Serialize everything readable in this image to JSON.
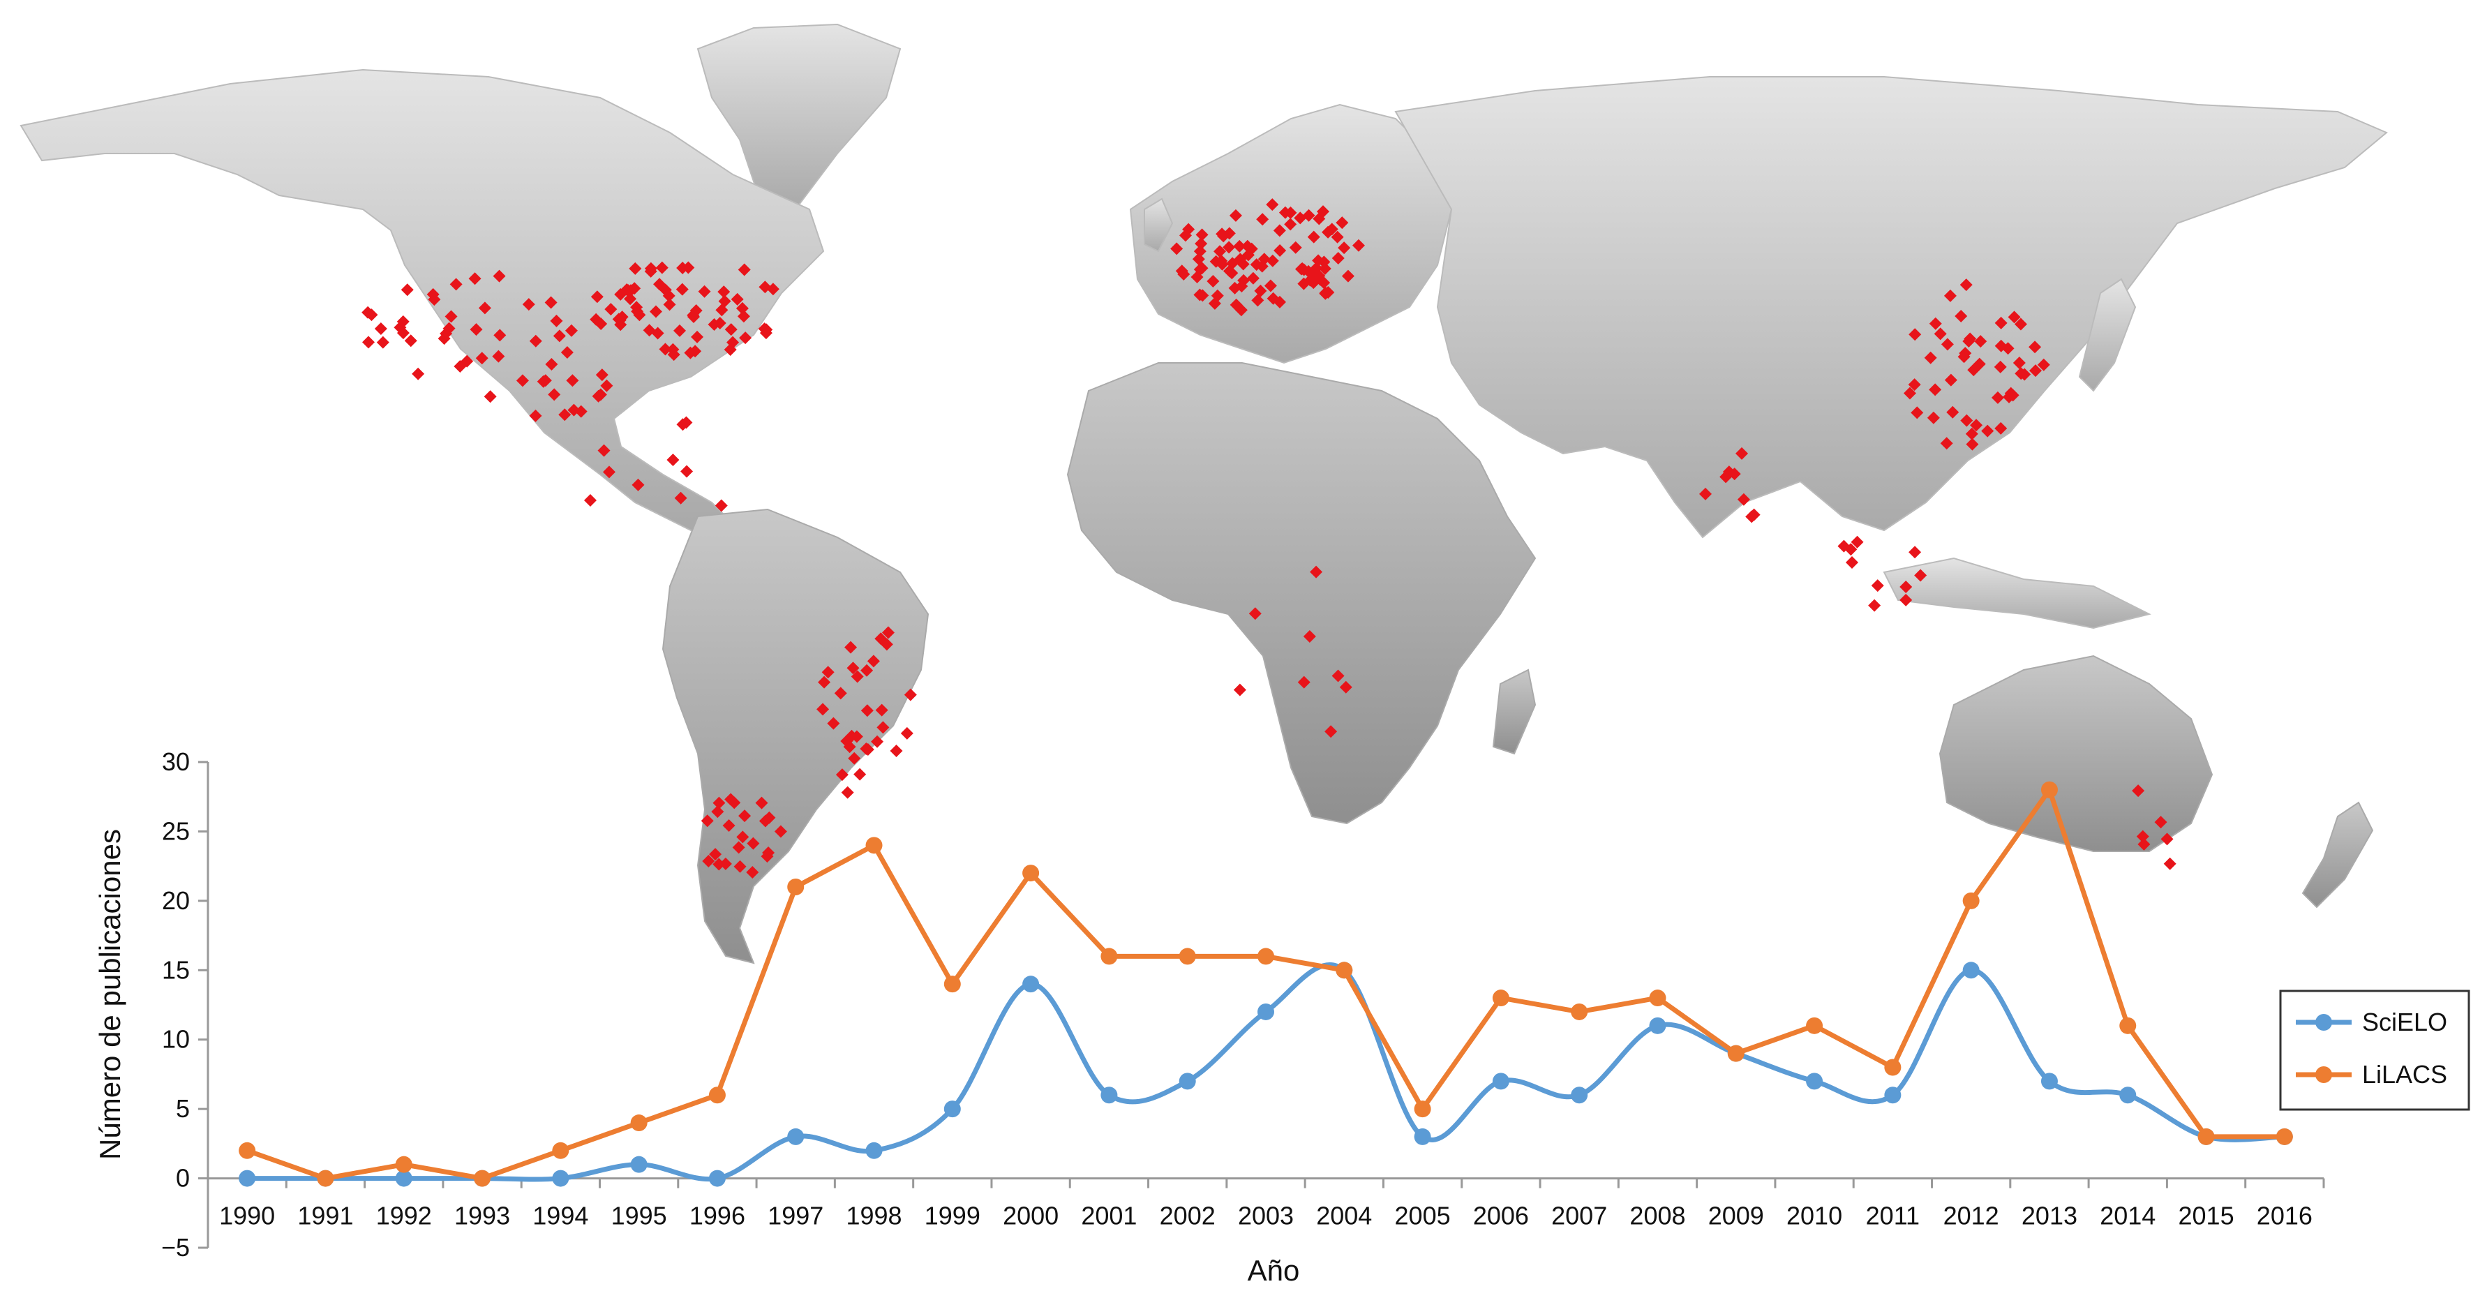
{
  "chart_data": {
    "type": "line",
    "background": "world map with red markers",
    "title": "",
    "xlabel": "Año",
    "ylabel": "Número de publicaciones",
    "ylim": [
      -5,
      30
    ],
    "yticks": [
      "30",
      "25",
      "20",
      "15",
      "10",
      "5",
      "0",
      "−5"
    ],
    "ytick_values": [
      30,
      25,
      20,
      15,
      10,
      5,
      0,
      -5
    ],
    "categories": [
      "1990",
      "1991",
      "1992",
      "1993",
      "1994",
      "1995",
      "1996",
      "1997",
      "1998",
      "1999",
      "2000",
      "2001",
      "2002",
      "2003",
      "2004",
      "2005",
      "2006",
      "2007",
      "2008",
      "2009",
      "2010",
      "2011",
      "2012",
      "2013",
      "2014",
      "2015",
      "2016"
    ],
    "series": [
      {
        "name": "SciELO",
        "color": "#5b9bd5",
        "smooth": true,
        "values": [
          0,
          0,
          0,
          0,
          0,
          1,
          0,
          3,
          2,
          5,
          14,
          6,
          7,
          12,
          15,
          3,
          7,
          6,
          11,
          9,
          7,
          6,
          15,
          7,
          6,
          3,
          3
        ]
      },
      {
        "name": "LiLACS",
        "color": "#ed7d31",
        "smooth": false,
        "values": [
          2,
          0,
          1,
          0,
          2,
          4,
          6,
          21,
          24,
          14,
          22,
          16,
          16,
          16,
          15,
          5,
          13,
          12,
          13,
          9,
          11,
          8,
          20,
          28,
          11,
          3,
          3
        ]
      }
    ],
    "legend_position": "right",
    "grid": false
  },
  "map": {
    "land_color": "#d2d2d2",
    "marker_color": "#e8141a"
  }
}
